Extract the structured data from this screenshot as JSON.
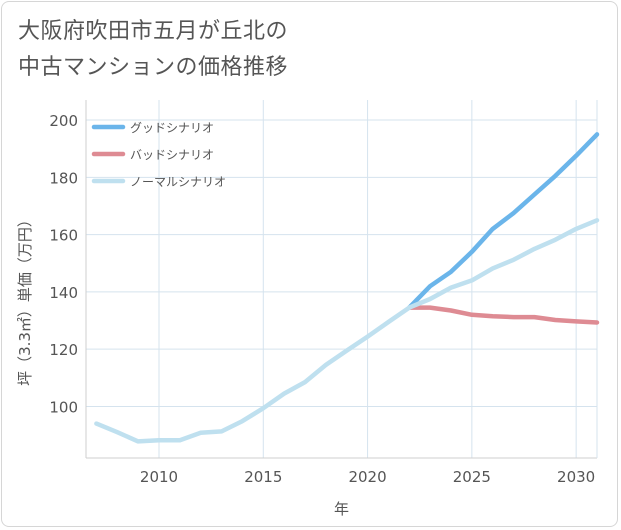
{
  "title_lines": [
    "大阪府吹田市五月が丘北の",
    "中古マンションの価格推移"
  ],
  "chart_data": {
    "type": "line",
    "xlabel": "年",
    "ylabel": "坪（3.3㎡）単価（万円）",
    "xlim": [
      2006.5,
      2031
    ],
    "ylim": [
      82,
      207
    ],
    "xticks": [
      2010,
      2015,
      2020,
      2025,
      2030
    ],
    "yticks": [
      100,
      120,
      140,
      160,
      180,
      200
    ],
    "grid": true,
    "legend_position": "top-left",
    "series": [
      {
        "name": "グッドシナリオ",
        "color": "#6bb5ea",
        "x": [
          2022,
          2023,
          2024,
          2025,
          2026,
          2027,
          2028,
          2029,
          2030,
          2031
        ],
        "values": [
          134.5,
          142,
          147,
          154,
          162,
          167.5,
          174,
          180.5,
          187.5,
          195
        ]
      },
      {
        "name": "バッドシナリオ",
        "color": "#de8b93",
        "x": [
          2022,
          2023,
          2024,
          2025,
          2026,
          2027,
          2028,
          2029,
          2030,
          2031
        ],
        "values": [
          134.5,
          134.5,
          133.5,
          132,
          131.5,
          131.2,
          131.2,
          130.2,
          129.7,
          129.3
        ]
      },
      {
        "name": "ノーマルシナリオ",
        "color": "#bfe0ef",
        "x": [
          2007,
          2008,
          2009,
          2010,
          2011,
          2012,
          2013,
          2014,
          2015,
          2016,
          2017,
          2018,
          2019,
          2020,
          2021,
          2022,
          2023,
          2024,
          2025,
          2026,
          2027,
          2028,
          2029,
          2030,
          2031
        ],
        "values": [
          94,
          91,
          87.8,
          88.2,
          88.2,
          90.8,
          91.3,
          94.9,
          99.4,
          104.5,
          108.5,
          114.5,
          119.5,
          124.4,
          129.5,
          134.5,
          137.5,
          141.5,
          144,
          148.2,
          151.2,
          155,
          158.2,
          162,
          165
        ]
      }
    ]
  }
}
